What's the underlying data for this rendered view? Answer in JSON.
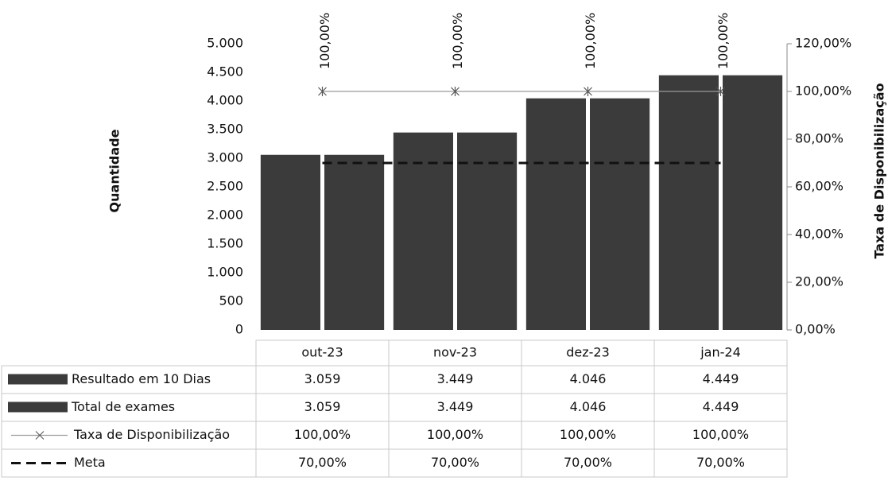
{
  "chart_data": {
    "type": "bar",
    "ylabel": "Quantidade",
    "y2label": "Taxa de Disponibilização",
    "categories": [
      "out-23",
      "nov-23",
      "dez-23",
      "jan-24"
    ],
    "series": [
      {
        "name": "Resultado em 10 Dias",
        "type": "bar",
        "color": "#3b3b3b",
        "values": [
          3059,
          3449,
          4046,
          4449
        ],
        "value_labels": [
          "3.059",
          "3.449",
          "4.046",
          "4.449"
        ]
      },
      {
        "name": "Total de exames",
        "type": "bar",
        "color": "#3b3b3b",
        "values": [
          3059,
          3449,
          4046,
          4449
        ],
        "value_labels": [
          "3.059",
          "3.449",
          "4.046",
          "4.449"
        ]
      },
      {
        "name": "Taxa de Disponibilização",
        "type": "line",
        "axis": "y2",
        "color": "#9a9a9a",
        "marker": "asterisk",
        "data_labels": true,
        "values": [
          100,
          100,
          100,
          100
        ],
        "value_labels": [
          "100,00%",
          "100,00%",
          "100,00%",
          "100,00%"
        ]
      },
      {
        "name": "Meta",
        "type": "line",
        "axis": "y2",
        "color": "#111111",
        "line_style": "dashed",
        "values": [
          70,
          70,
          70,
          70
        ],
        "value_labels": [
          "70,00%",
          "70,00%",
          "70,00%",
          "70,00%"
        ]
      }
    ],
    "ylim": [
      0,
      5000
    ],
    "yticks": [
      0,
      500,
      {
        "value": 1000,
        "label": "1.000"
      },
      {
        "value": 1500,
        "label": "1.500"
      },
      {
        "value": 2000,
        "label": "2.000"
      },
      {
        "value": 2500,
        "label": "2.500"
      },
      {
        "value": 3000,
        "label": "3.000"
      },
      {
        "value": 3500,
        "label": "3.500"
      },
      {
        "value": 4000,
        "label": "4.000"
      },
      {
        "value": 4500,
        "label": "4.500"
      },
      {
        "value": 5000,
        "label": "5.000"
      }
    ],
    "y2lim": [
      0,
      120
    ],
    "y2ticks": [
      {
        "value": 0,
        "label": "0,00%"
      },
      {
        "value": 20,
        "label": "20,00%"
      },
      {
        "value": 40,
        "label": "40,00%"
      },
      {
        "value": 60,
        "label": "60,00%"
      },
      {
        "value": 80,
        "label": "80,00%"
      },
      {
        "value": 100,
        "label": "100,00%"
      },
      {
        "value": 120,
        "label": "120,00%"
      }
    ],
    "grid": false,
    "data_table": true
  }
}
